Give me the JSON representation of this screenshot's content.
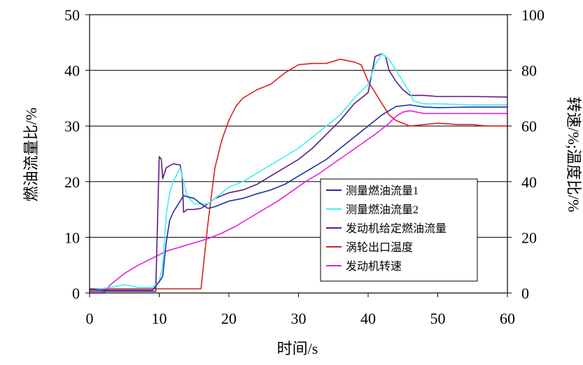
{
  "chart_data": {
    "type": "line",
    "xlabel": "时间/s",
    "ylabel_left": "燃油流量比/%",
    "ylabel_right": "转速/%;温度比/%",
    "xlim": [
      0,
      60
    ],
    "ylim_left": [
      0,
      50
    ],
    "ylim_right": [
      0,
      100
    ],
    "x_ticks": [
      "0",
      "10",
      "20",
      "30",
      "40",
      "50",
      "60"
    ],
    "y_left_ticks": [
      "0",
      "10",
      "20",
      "30",
      "40",
      "50"
    ],
    "y_right_ticks": [
      "0",
      "20",
      "40",
      "60",
      "80",
      "100"
    ],
    "grid": "horizontal",
    "legend_position": "lower-right",
    "series": [
      {
        "name": "测量燃油流量1",
        "axis": "left",
        "color": "#1f2fa0",
        "points": [
          [
            0,
            0.6
          ],
          [
            3,
            0.5
          ],
          [
            6,
            0.5
          ],
          [
            9,
            0.5
          ],
          [
            10,
            2
          ],
          [
            10.5,
            3
          ],
          [
            11,
            9
          ],
          [
            11.5,
            13
          ],
          [
            12,
            14.5
          ],
          [
            13,
            16.5
          ],
          [
            13.5,
            17.5
          ],
          [
            14,
            17.3
          ],
          [
            15,
            17
          ],
          [
            16,
            16
          ],
          [
            17,
            15.2
          ],
          [
            18,
            15.5
          ],
          [
            19,
            16
          ],
          [
            20,
            16.5
          ],
          [
            22,
            17
          ],
          [
            24,
            17.8
          ],
          [
            26,
            18.5
          ],
          [
            28,
            19.5
          ],
          [
            30,
            21
          ],
          [
            32,
            22.5
          ],
          [
            34,
            24
          ],
          [
            36,
            26
          ],
          [
            38,
            28
          ],
          [
            40,
            30
          ],
          [
            42,
            32
          ],
          [
            44,
            33.5
          ],
          [
            46,
            33.8
          ],
          [
            48,
            33.4
          ],
          [
            50,
            33.3
          ],
          [
            55,
            33.4
          ],
          [
            60,
            33.4
          ]
        ]
      },
      {
        "name": "测量燃油流量2",
        "axis": "left",
        "color": "#3ff0f0",
        "points": [
          [
            0,
            0.5
          ],
          [
            3,
            1
          ],
          [
            5,
            1.5
          ],
          [
            7,
            1
          ],
          [
            9,
            1
          ],
          [
            10,
            2
          ],
          [
            10.5,
            5
          ],
          [
            11,
            14
          ],
          [
            11.5,
            18
          ],
          [
            12,
            20
          ],
          [
            13,
            22.5
          ],
          [
            13.5,
            20
          ],
          [
            14,
            17.5
          ],
          [
            15,
            16
          ],
          [
            16,
            16
          ],
          [
            17,
            16
          ],
          [
            18,
            17
          ],
          [
            19,
            18
          ],
          [
            20,
            19
          ],
          [
            22,
            20
          ],
          [
            24,
            21.5
          ],
          [
            26,
            23
          ],
          [
            28,
            24.5
          ],
          [
            30,
            26
          ],
          [
            32,
            28
          ],
          [
            34,
            30
          ],
          [
            36,
            32
          ],
          [
            38,
            35
          ],
          [
            40,
            37.5
          ],
          [
            41,
            41
          ],
          [
            42,
            43
          ],
          [
            43,
            42
          ],
          [
            44,
            40
          ],
          [
            45,
            38
          ],
          [
            46,
            36
          ],
          [
            46.5,
            34.5
          ],
          [
            48,
            34
          ],
          [
            50,
            34
          ],
          [
            55,
            33.8
          ],
          [
            60,
            33.8
          ]
        ]
      },
      {
        "name": "发动机给定燃油流量",
        "axis": "left",
        "color": "#5c1a82",
        "points": [
          [
            0,
            0.3
          ],
          [
            9.5,
            0.3
          ],
          [
            10,
            24.5
          ],
          [
            10.3,
            24
          ],
          [
            10.5,
            20.5
          ],
          [
            11,
            22.5
          ],
          [
            12,
            23.2
          ],
          [
            13,
            23
          ],
          [
            13.3,
            21
          ],
          [
            13.5,
            14.5
          ],
          [
            14,
            15
          ],
          [
            15,
            15
          ],
          [
            16,
            15.2
          ],
          [
            17,
            16
          ],
          [
            18,
            17
          ],
          [
            20,
            18
          ],
          [
            22,
            18.5
          ],
          [
            24,
            19.5
          ],
          [
            26,
            21
          ],
          [
            28,
            22.5
          ],
          [
            30,
            24
          ],
          [
            32,
            26
          ],
          [
            34,
            28.5
          ],
          [
            36,
            31
          ],
          [
            38,
            34
          ],
          [
            40,
            36
          ],
          [
            41,
            42.5
          ],
          [
            42,
            43
          ],
          [
            42.5,
            42.5
          ],
          [
            43,
            40
          ],
          [
            44,
            38
          ],
          [
            45,
            36.5
          ],
          [
            46,
            35.5
          ],
          [
            48,
            35.5
          ],
          [
            50,
            35.3
          ],
          [
            55,
            35.3
          ],
          [
            60,
            35.2
          ]
        ]
      },
      {
        "name": "涡轮出口温度",
        "axis": "right",
        "color": "#d82020",
        "points": [
          [
            0,
            1.5
          ],
          [
            10,
            1.5
          ],
          [
            15,
            1.5
          ],
          [
            16,
            1.5
          ],
          [
            17,
            25
          ],
          [
            18,
            45
          ],
          [
            19,
            55
          ],
          [
            20,
            62
          ],
          [
            21,
            67
          ],
          [
            22,
            70
          ],
          [
            24,
            73
          ],
          [
            26,
            75
          ],
          [
            28,
            79
          ],
          [
            30,
            82
          ],
          [
            32,
            82.5
          ],
          [
            34,
            82.5
          ],
          [
            36,
            84
          ],
          [
            38,
            83
          ],
          [
            39,
            82
          ],
          [
            40,
            76
          ],
          [
            41,
            72
          ],
          [
            42,
            68
          ],
          [
            43,
            64
          ],
          [
            44,
            62
          ],
          [
            45,
            61
          ],
          [
            46,
            60
          ],
          [
            48,
            60.5
          ],
          [
            50,
            61
          ],
          [
            53,
            60.5
          ],
          [
            55,
            60.5
          ],
          [
            57,
            60
          ],
          [
            60,
            60
          ]
        ]
      },
      {
        "name": "发动机转速",
        "axis": "right",
        "color": "#e020e0",
        "points": [
          [
            0,
            0
          ],
          [
            2,
            0
          ],
          [
            3,
            3
          ],
          [
            5,
            7
          ],
          [
            7,
            10
          ],
          [
            9,
            12.5
          ],
          [
            11,
            15
          ],
          [
            13,
            16.5
          ],
          [
            15,
            18
          ],
          [
            17,
            19.5
          ],
          [
            19,
            21.5
          ],
          [
            21,
            24
          ],
          [
            23,
            27
          ],
          [
            25,
            30
          ],
          [
            27,
            33
          ],
          [
            29,
            36.5
          ],
          [
            31,
            40
          ],
          [
            33,
            43
          ],
          [
            35,
            46.5
          ],
          [
            37,
            50
          ],
          [
            39,
            53.5
          ],
          [
            41,
            57
          ],
          [
            43,
            61
          ],
          [
            44,
            63.5
          ],
          [
            45,
            65
          ],
          [
            46,
            65.5
          ],
          [
            48,
            64.5
          ],
          [
            50,
            64.5
          ],
          [
            55,
            64.5
          ],
          [
            60,
            64.5
          ]
        ]
      }
    ]
  }
}
